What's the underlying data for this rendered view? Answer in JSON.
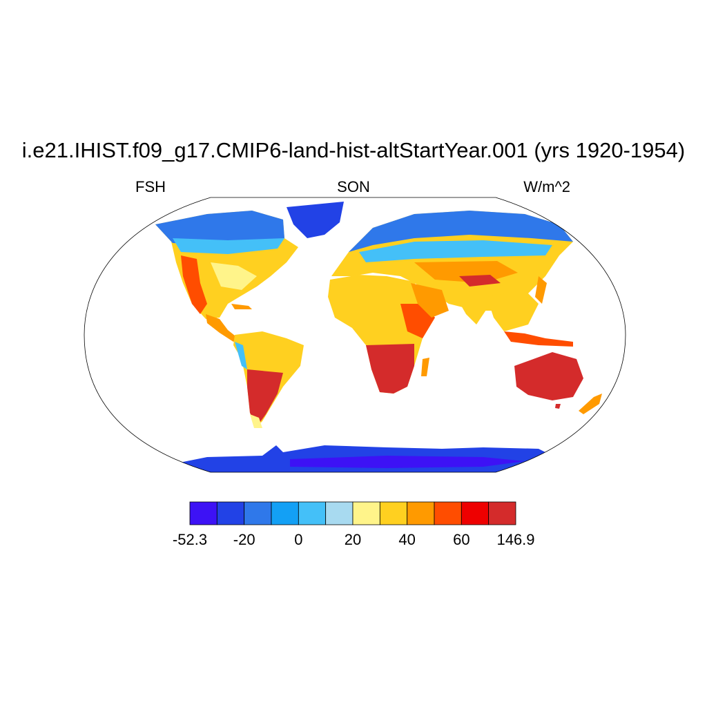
{
  "title": "i.e21.IHIST.f09_g17.CMIP6-land-hist-altStartYear.001 (yrs 1920-1954)",
  "left_label": "FSH",
  "center_label": "SON",
  "right_label": "W/m^2",
  "colorbar": {
    "colors": [
      "#3d12f5",
      "#2242e6",
      "#2f78ea",
      "#13a0f5",
      "#44c0f8",
      "#a8daf0",
      "#fff48a",
      "#ffd020",
      "#ff9a00",
      "#ff4d00",
      "#ee0000",
      "#d42b2b"
    ],
    "tick_labels": [
      "-52.3",
      "-20",
      "0",
      "20",
      "40",
      "60",
      "146.9"
    ]
  }
}
